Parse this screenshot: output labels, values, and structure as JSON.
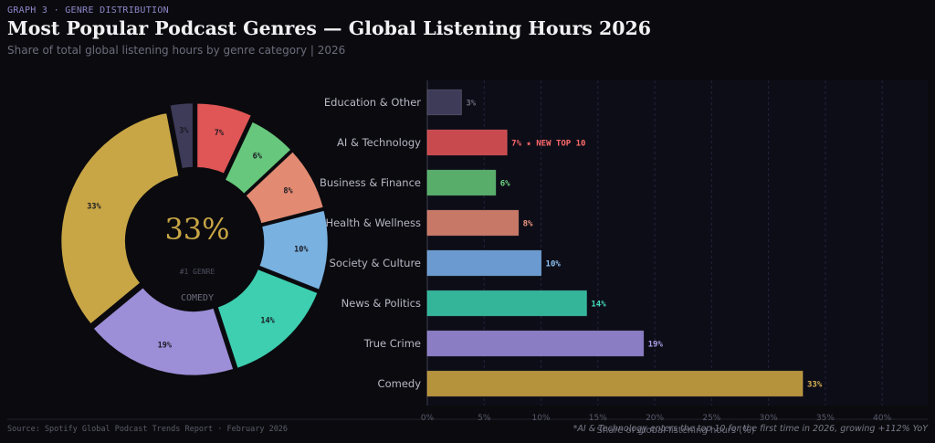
{
  "header": {
    "kicker": "GRAPH 3  ·  GENRE DISTRIBUTION",
    "title": "Most Popular Podcast Genres — Global Listening Hours 2026",
    "subtitle": "Share of total global listening hours by genre category  |  2026"
  },
  "footer": {
    "source": "Source: Spotify Global Podcast Trends Report  ·  February 2026",
    "note": "*AI & Technology enters the top 10 for the first time in 2026, growing +112% YoY"
  },
  "center_label": {
    "value": "33%",
    "caption": "#1 GENRE",
    "genre": "COMEDY"
  },
  "colors": {
    "background": "#0b0b0f",
    "panel": "#0d0d18",
    "grid": "#23233a",
    "tick": "#5a5a6e",
    "category_label": "#b6b6c4"
  },
  "chart_data": [
    {
      "type": "pie",
      "variant": "donut",
      "categories": [
        "AI & Technology",
        "Business & Finance",
        "Health & Wellness",
        "Society & Culture",
        "News & Politics",
        "True Crime",
        "Comedy",
        "Education & Other"
      ],
      "values": [
        7,
        6,
        8,
        10,
        14,
        19,
        33,
        3
      ],
      "value_labels": [
        "7%",
        "6%",
        "8%",
        "10%",
        "14%",
        "19%",
        "33%",
        "3%"
      ],
      "colors": [
        "#e05555",
        "#67c77c",
        "#e38a72",
        "#79b1e0",
        "#3dcfb0",
        "#9d8ed8",
        "#c8a645",
        "#3d3b58"
      ],
      "exploded": [
        "AI & Technology",
        "Education & Other"
      ]
    },
    {
      "type": "bar",
      "orientation": "horizontal",
      "categories": [
        "Education & Other",
        "AI & Technology",
        "Business & Finance",
        "Health & Wellness",
        "Society & Culture",
        "News & Politics",
        "True Crime",
        "Comedy"
      ],
      "values": [
        3,
        7,
        6,
        8,
        10,
        14,
        19,
        33
      ],
      "value_labels": [
        "3%",
        "7% ★ NEW TOP 10",
        "6%",
        "8%",
        "10%",
        "14%",
        "19%",
        "33%"
      ],
      "colors": [
        "#3d3b58",
        "#c84a4e",
        "#58ad6a",
        "#c87866",
        "#6a9ad0",
        "#34b59a",
        "#8b7dc4",
        "#b5923c"
      ],
      "label_colors": [
        "#6b6b7c",
        "#ff6a6a",
        "#6fd885",
        "#f29a82",
        "#8cc2f0",
        "#45d9ba",
        "#ac9ee8",
        "#d9b355"
      ],
      "xlim": [
        0,
        44
      ],
      "xticks": [
        "0%",
        "5%",
        "10%",
        "15%",
        "20%",
        "25%",
        "30%",
        "35%",
        "40%"
      ],
      "xtick_values": [
        0,
        5,
        10,
        15,
        20,
        25,
        30,
        35,
        40
      ],
      "xlabel": "Share of global listening hours (%)",
      "grid": "vertical dashed"
    }
  ]
}
